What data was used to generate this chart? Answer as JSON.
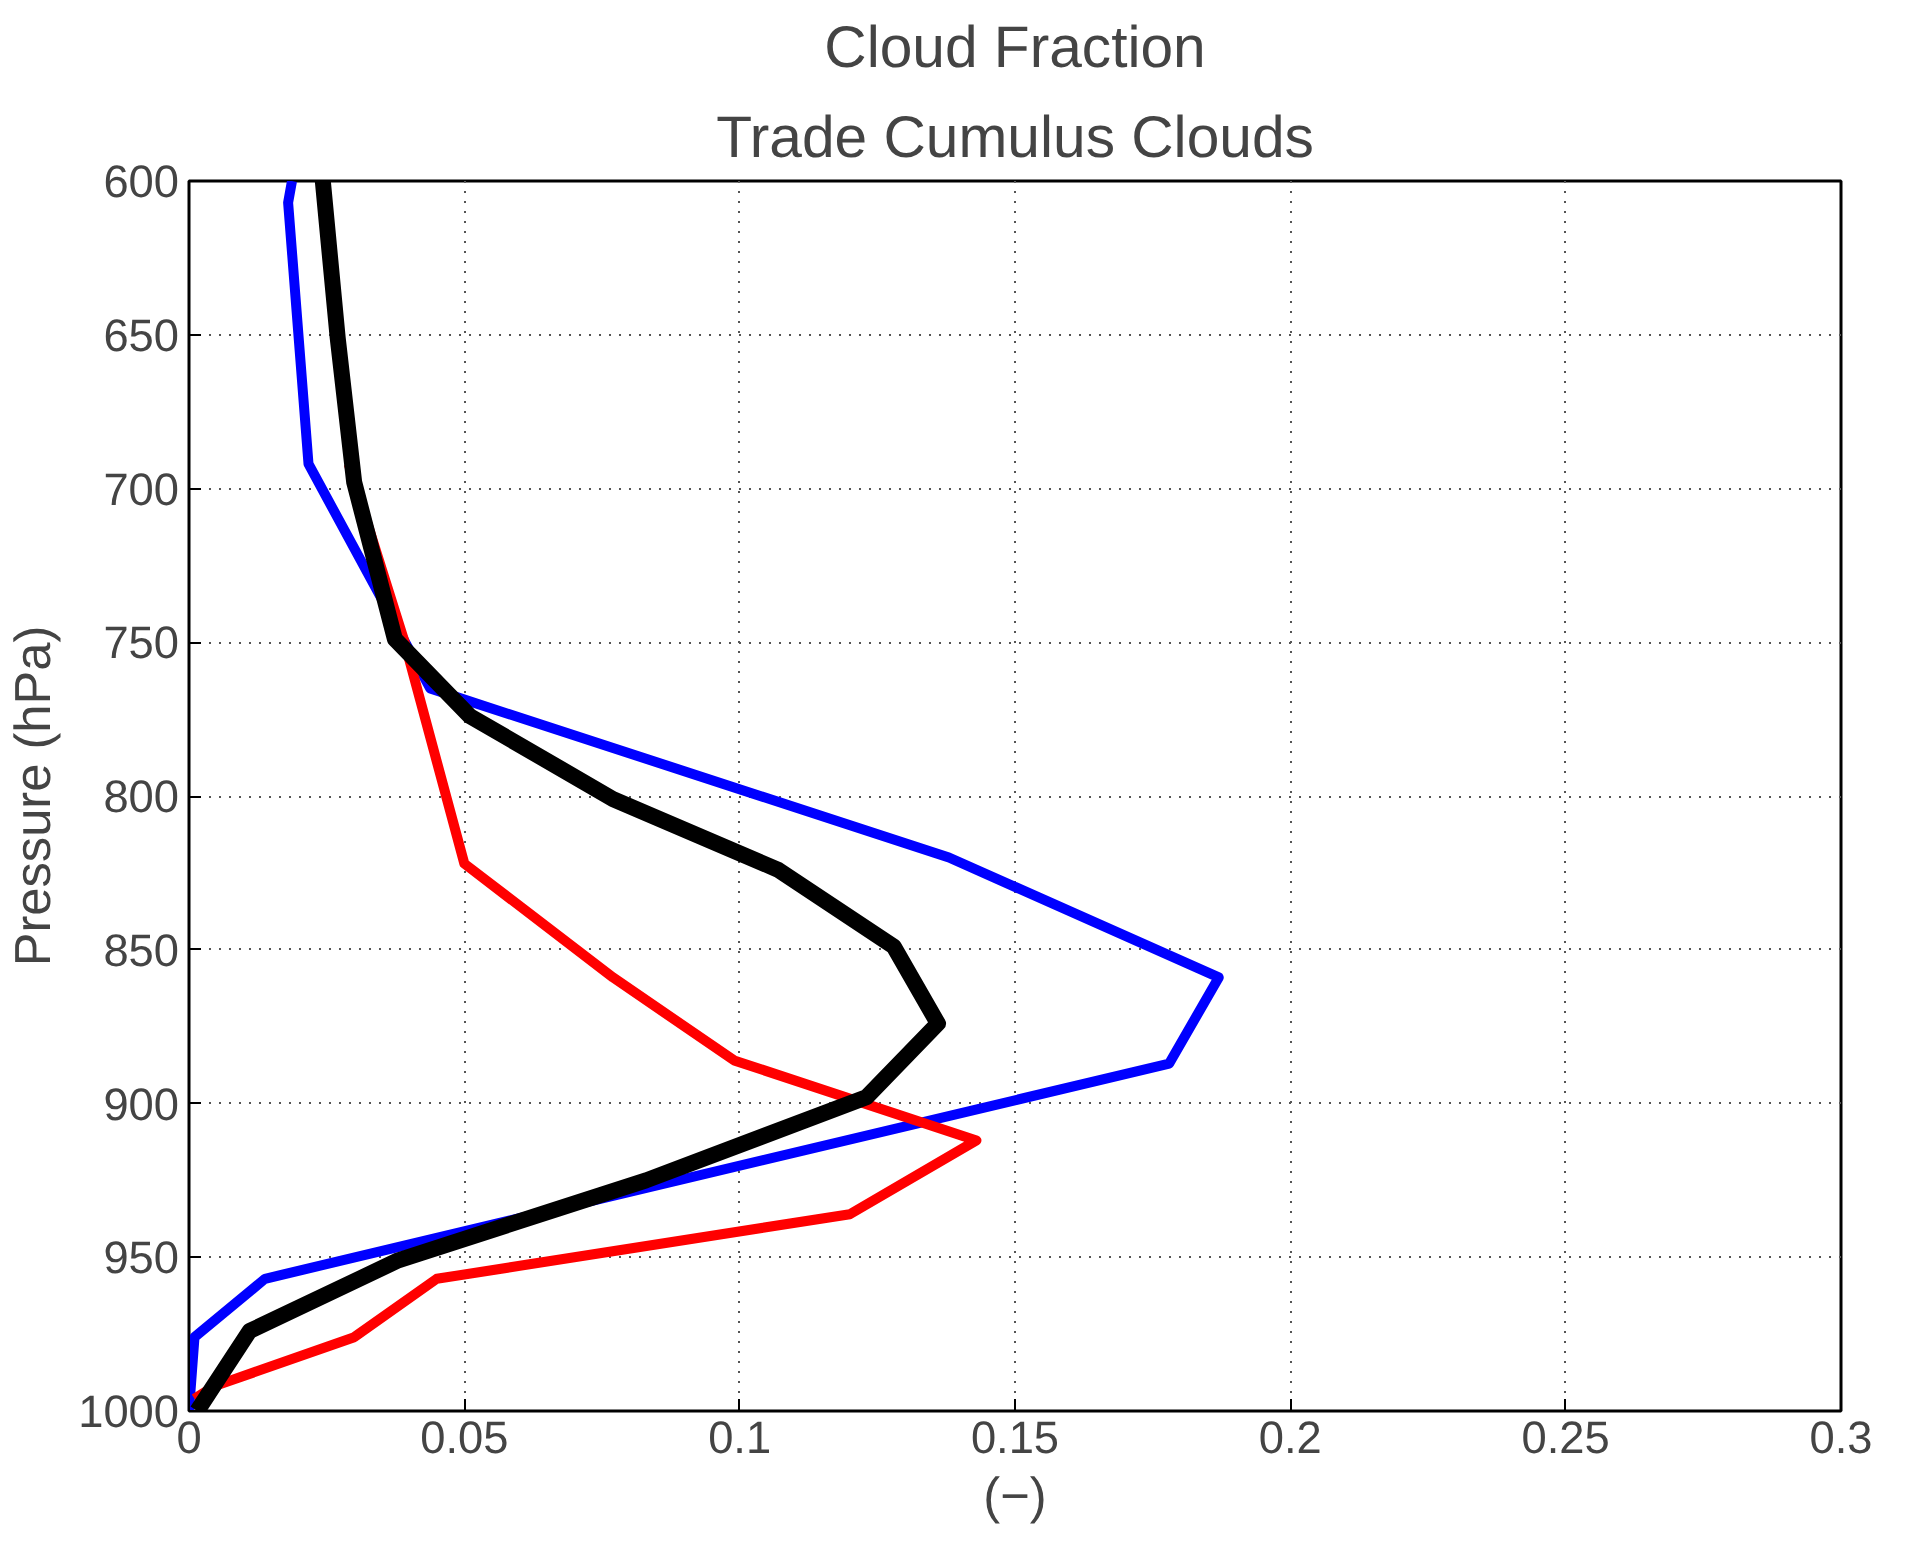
{
  "chart_data": {
    "type": "line",
    "title": "Cloud Fraction",
    "subtitle": "Trade Cumulus Clouds",
    "xlabel": "(−)",
    "ylabel": "Pressure (hPa)",
    "xlim": [
      0,
      0.3
    ],
    "xticks": [
      0,
      0.05,
      0.1,
      0.15,
      0.2,
      0.25,
      0.3
    ],
    "ylim": [
      1000,
      600
    ],
    "yticks": [
      600,
      650,
      700,
      750,
      800,
      850,
      900,
      950,
      1000
    ],
    "grid": true,
    "line_style": "solid",
    "marker": "none",
    "series": [
      {
        "color": "#0000ff",
        "x": [
          0.0187,
          0.018,
          0.0217,
          0.0438,
          0.138,
          0.187,
          0.178,
          0.0138,
          0.001,
          0
        ],
        "values": [
          600,
          607,
          692,
          765,
          820,
          859,
          887,
          957,
          976,
          1000
        ]
      },
      {
        "color": "#ff0000",
        "x": [
          0.029,
          0.039,
          0.05,
          0.077,
          0.099,
          0.143,
          0.12,
          0.045,
          0.03,
          0.0045,
          0.001
        ],
        "values": [
          692,
          749,
          822,
          859,
          886,
          912,
          936,
          957,
          976,
          992,
          996
        ]
      },
      {
        "color": "#000000",
        "x": [
          0.0243,
          0.027,
          0.03,
          0.0374,
          0.051,
          0.077,
          0.107,
          0.128,
          0.136,
          0.123,
          0.083,
          0.038,
          0.011,
          0.0015
        ],
        "values": [
          600,
          651,
          698,
          749,
          774,
          801,
          824,
          849,
          874,
          898,
          925,
          951,
          974,
          1000
        ]
      }
    ]
  }
}
